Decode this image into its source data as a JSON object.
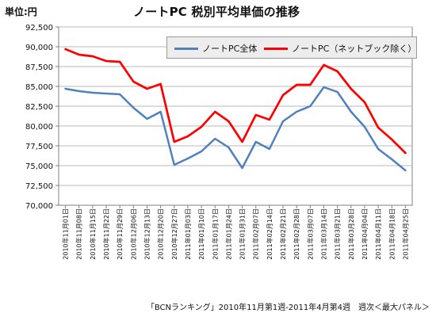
{
  "chart": {
    "title": "ノートPC 税別平均単価の推移",
    "unit_label": "単位:円",
    "source_note": "「BCNランキング」2010年11月第1週-2011年4月第4週　週次＜最大パネル＞"
  },
  "chart_data": {
    "type": "line",
    "title": "ノートPC 税別平均単価の推移",
    "ylabel": "単位:円",
    "ylim": [
      70000,
      92500
    ],
    "yticks": [
      70000,
      72500,
      75000,
      77500,
      80000,
      82500,
      85000,
      87500,
      90000,
      92500
    ],
    "ytick_labels": [
      "70,000",
      "72,500",
      "75,000",
      "77,500",
      "80,000",
      "82,500",
      "85,000",
      "87,500",
      "90,000",
      "92,500"
    ],
    "grid": true,
    "legend_position": "top-right",
    "categories": [
      "2010年11月01日",
      "2010年11月08日",
      "2010年11月15日",
      "2010年11月22日",
      "2010年11月29日",
      "2010年12月06日",
      "2010年12月13日",
      "2010年12月20日",
      "2010年12月27日",
      "2011年01月03日",
      "2011年01月10日",
      "2011年01月17日",
      "2011年01月24日",
      "2011年01月31日",
      "2011年02月07日",
      "2011年02月14日",
      "2011年02月21日",
      "2011年02月28日",
      "2011年03月07日",
      "2011年03月14日",
      "2011年03月21日",
      "2011年03月28日",
      "2011年04月04日",
      "2011年04月11日",
      "2011年04月18日",
      "2011年04月25日"
    ],
    "series": [
      {
        "name": "ノートPC全体",
        "color": "#4F81BD",
        "values": [
          84700,
          84400,
          84200,
          84100,
          84000,
          82300,
          80900,
          81800,
          75100,
          75900,
          76800,
          78400,
          77300,
          74700,
          78000,
          77100,
          80600,
          81800,
          82500,
          84900,
          84300,
          81800,
          79900,
          77100,
          75800,
          74400
        ]
      },
      {
        "name": "ノートPC（ネットブック除く）",
        "color": "#FF0000",
        "values": [
          89700,
          89000,
          88800,
          88200,
          88100,
          85600,
          84700,
          85300,
          78000,
          78700,
          79900,
          81800,
          80600,
          78000,
          81400,
          80800,
          83900,
          85200,
          85200,
          87700,
          86900,
          84700,
          83000,
          79800,
          78300,
          76600
        ]
      }
    ]
  }
}
